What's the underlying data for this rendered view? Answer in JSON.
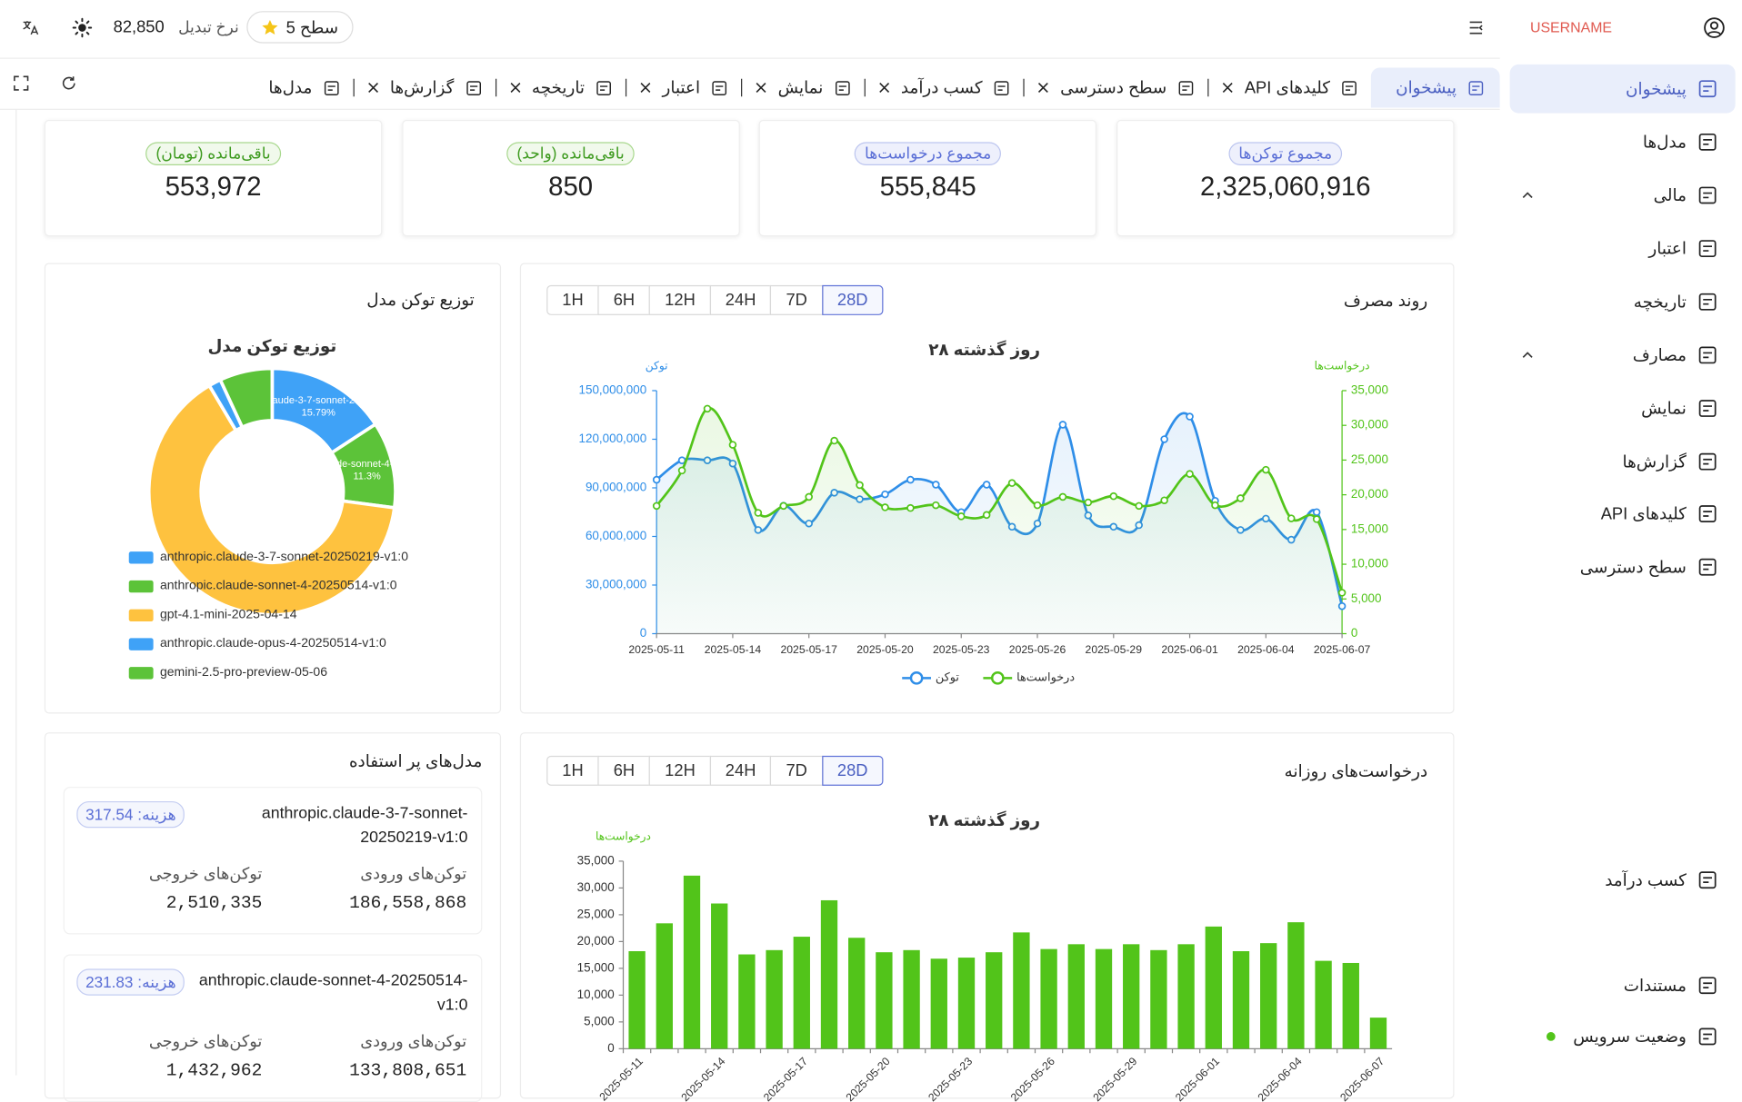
{
  "header": {
    "username": "USERNAME",
    "level": "سطح 5",
    "rate_label": "نرخ تبدیل",
    "rate_value": "82,850"
  },
  "sidebar": [
    "پیشخوان",
    "مدل‌ها",
    "مالی",
    "اعتبار",
    "تاریخچه",
    "مصارف",
    "نمایش",
    "گزارش‌ها",
    "کلیدهای API",
    "سطح دسترسی",
    "کسب درآمد",
    "مستندات",
    "وضعیت سرویس"
  ],
  "tabs": [
    "پیشخوان",
    "کلیدهای API",
    "سطح دسترسی",
    "کسب درآمد",
    "نمایش",
    "اعتبار",
    "تاریخچه",
    "گزارش‌ها",
    "مدل‌ها"
  ],
  "stats": [
    {
      "label": "مجموع توکن‌ها",
      "value": "2,325,060,916"
    },
    {
      "label": "مجموع درخواست‌ها",
      "value": "555,845"
    },
    {
      "label": "باقی‌مانده (واحد)",
      "value": "850"
    },
    {
      "label": "باقی‌مانده (تومان)",
      "value": "553,972"
    }
  ],
  "usage": {
    "title": "روند مصرف",
    "ranges": [
      "1H",
      "6H",
      "12H",
      "24H",
      "7D",
      "28D"
    ],
    "chart": {
      "type": "line",
      "title": "۲۸ روز گذشته",
      "y_label": "توکن",
      "y2_label": "درخواست‌ها",
      "categories": [
        "2025-05-11",
        null,
        null,
        "2025-05-14",
        null,
        null,
        "2025-05-17",
        null,
        null,
        "2025-05-20",
        null,
        null,
        "2025-05-23",
        null,
        null,
        "2025-05-26",
        null,
        null,
        "2025-05-29",
        null,
        null,
        "2025-06-01",
        null,
        null,
        "2025-06-04",
        null,
        null,
        "2025-06-07"
      ],
      "ylim": [
        0,
        150000000
      ],
      "yticks": [
        0,
        {
          "value": 30000000,
          "label": "30,000,000"
        },
        {
          "value": 60000000,
          "label": "60,000,000"
        },
        {
          "value": 90000000,
          "label": "90,000,000"
        },
        {
          "value": 120000000,
          "label": "120,000,000"
        },
        {
          "value": 150000000,
          "label": "150,000,000"
        }
      ],
      "y2lim": [
        0,
        35000
      ],
      "y2ticks": [
        0,
        {
          "value": 5000,
          "label": "5,000"
        },
        {
          "value": 10000,
          "label": "10,000"
        },
        {
          "value": 15000,
          "label": "15,000"
        },
        {
          "value": 20000,
          "label": "20,000"
        },
        {
          "value": 25000,
          "label": "25,000"
        },
        {
          "value": 30000,
          "label": "30,000"
        },
        {
          "value": 35000,
          "label": "35,000"
        }
      ],
      "series": [
        {
          "name": "توکن",
          "color": "#2f8ee8",
          "axis": "y",
          "values": [
            95000000,
            107000000,
            107000000,
            105000000,
            64000000,
            79000000,
            68000000,
            87000000,
            83000000,
            86000000,
            95000000,
            92000000,
            75000000,
            92000000,
            66000000,
            68000000,
            129000000,
            73000000,
            66000000,
            67000000,
            120000000,
            134000000,
            82000000,
            64000000,
            71000000,
            58000000,
            75000000,
            17000000
          ]
        },
        {
          "name": "درخواست‌ها",
          "color": "#52c41a",
          "axis": "y2",
          "values": [
            18400,
            23500,
            32400,
            27200,
            17400,
            18400,
            19700,
            27800,
            21400,
            18200,
            18100,
            18500,
            16900,
            17100,
            21700,
            18500,
            19700,
            18900,
            19800,
            18400,
            19200,
            23000,
            18500,
            19500,
            23600,
            16600,
            16500,
            5900
          ]
        }
      ]
    }
  },
  "distribution": {
    "title": "توزیع توکن مدل",
    "chart": {
      "type": "pie",
      "title": "توزیع توکن مدل",
      "categories": [
        "anthropic.claude-3-7-sonnet-20250219-v1:0",
        "anthropic.claude-sonnet-4-20250514-v1:0",
        "gpt-4.1-mini-2025-04-14",
        "anthropic.claude-opus-4-20250514-v1:0",
        "gemini-2.5-pro-preview-05-06"
      ],
      "values": [
        15.79,
        11.3,
        64.4,
        1.6,
        6.91
      ],
      "value_labels": [
        "15.79%",
        "11.3%",
        null,
        null,
        null
      ],
      "colors": [
        "#3fa2f7",
        "#5cc339",
        "#fec23f",
        "#3fa2f7",
        "#5cc339"
      ]
    }
  },
  "top_models": {
    "title": "مدل‌های پر استفاده",
    "items": [
      {
        "name": "anthropic.claude-3-7-sonnet-20250219-v1:0",
        "cost_label": "هزینه:",
        "cost": "317.54",
        "input_label": "توکن‌های ورودی",
        "input": "186,558,868",
        "output_label": "توکن‌های خروجی",
        "output": "2,510,335"
      },
      {
        "name": "anthropic.claude-sonnet-4-20250514-v1:0",
        "cost_label": "هزینه:",
        "cost": "231.83",
        "input_label": "توکن‌های ورودی",
        "input": "133,808,651",
        "output_label": "توکن‌های خروجی",
        "output": "1,432,962"
      }
    ]
  },
  "daily": {
    "title": "درخواست‌های روزانه",
    "ranges": [
      "1H",
      "6H",
      "12H",
      "24H",
      "7D",
      "28D"
    ],
    "chart": {
      "type": "bar",
      "title": "۲۸ روز گذشته",
      "y_label": "درخواست‌ها",
      "color": "#52c41a",
      "categories": [
        "2025-05-11",
        null,
        null,
        "2025-05-14",
        null,
        null,
        "2025-05-17",
        null,
        null,
        "2025-05-20",
        null,
        null,
        "2025-05-23",
        null,
        null,
        "2025-05-26",
        null,
        null,
        "2025-05-29",
        null,
        null,
        "2025-06-01",
        null,
        null,
        "2025-06-04",
        null,
        null,
        "2025-06-07"
      ],
      "values": [
        18200,
        23400,
        32300,
        27100,
        17600,
        18400,
        20900,
        27700,
        20700,
        18000,
        18400,
        16800,
        17000,
        18000,
        21700,
        18600,
        19500,
        18600,
        19500,
        18400,
        19500,
        22800,
        18200,
        19700,
        23600,
        16400,
        16000,
        5800
      ],
      "ylim": [
        0,
        35000
      ],
      "yticks": [
        0,
        {
          "value": 5000,
          "label": "5,000"
        },
        {
          "value": 10000,
          "label": "10,000"
        },
        {
          "value": 15000,
          "label": "15,000"
        },
        {
          "value": 20000,
          "label": "20,000"
        },
        {
          "value": 25000,
          "label": "25,000"
        },
        {
          "value": 30000,
          "label": "30,000"
        },
        {
          "value": 35000,
          "label": "35,000"
        }
      ]
    }
  }
}
